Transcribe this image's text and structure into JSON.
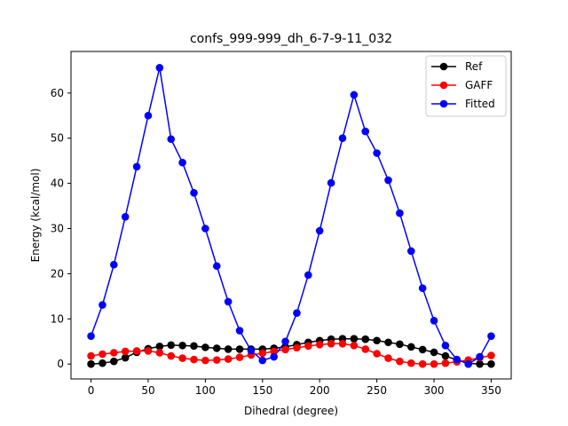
{
  "chart_data": {
    "type": "line",
    "title": "confs_999-999_dh_6-7-9-11_032",
    "xlabel": "Dihedral (degree)",
    "ylabel": "Energy (kcal/mol)",
    "xlim": [
      -17.5,
      367.5
    ],
    "ylim": [
      -3.3,
      69.2
    ],
    "xticks": [
      0,
      50,
      100,
      150,
      200,
      250,
      300,
      350
    ],
    "yticks": [
      0,
      10,
      20,
      30,
      40,
      50,
      60
    ],
    "grid": false,
    "legend_position": "top-right",
    "x": [
      0,
      10,
      20,
      30,
      40,
      50,
      60,
      70,
      80,
      90,
      100,
      110,
      120,
      130,
      140,
      150,
      160,
      170,
      180,
      190,
      200,
      210,
      220,
      230,
      240,
      250,
      260,
      270,
      280,
      290,
      300,
      310,
      320,
      330,
      340,
      350
    ],
    "series": [
      {
        "name": "Ref",
        "color": "#000000",
        "values": [
          0.0,
          0.2,
          0.6,
          1.4,
          2.6,
          3.4,
          3.9,
          4.2,
          4.1,
          4.0,
          3.7,
          3.5,
          3.3,
          3.3,
          3.3,
          3.3,
          3.5,
          3.8,
          4.3,
          4.8,
          5.2,
          5.5,
          5.6,
          5.6,
          5.5,
          5.2,
          4.8,
          4.4,
          3.8,
          3.2,
          2.6,
          1.8,
          0.9,
          0.2,
          0.0,
          0.0
        ]
      },
      {
        "name": "GAFF",
        "color": "#ff0000",
        "values": [
          1.8,
          2.2,
          2.5,
          2.8,
          2.9,
          2.9,
          2.5,
          1.8,
          1.3,
          1.0,
          0.8,
          0.9,
          1.1,
          1.5,
          2.0,
          2.4,
          2.8,
          3.2,
          3.6,
          4.0,
          4.3,
          4.5,
          4.5,
          4.1,
          3.3,
          2.3,
          1.3,
          0.6,
          0.2,
          0.0,
          0.0,
          0.2,
          0.5,
          0.9,
          1.4,
          1.9
        ]
      },
      {
        "name": "Fitted",
        "color": "#0000ff",
        "values": [
          6.2,
          13.1,
          22.0,
          32.6,
          43.7,
          55.0,
          65.6,
          49.8,
          44.6,
          37.9,
          30.0,
          21.7,
          13.8,
          7.4,
          3.0,
          0.8,
          1.6,
          5.0,
          11.3,
          19.7,
          29.5,
          40.1,
          50.0,
          59.6,
          51.5,
          46.7,
          40.7,
          33.4,
          25.0,
          16.8,
          9.6,
          4.1,
          1.0,
          0.0,
          1.6,
          6.2
        ]
      }
    ]
  }
}
